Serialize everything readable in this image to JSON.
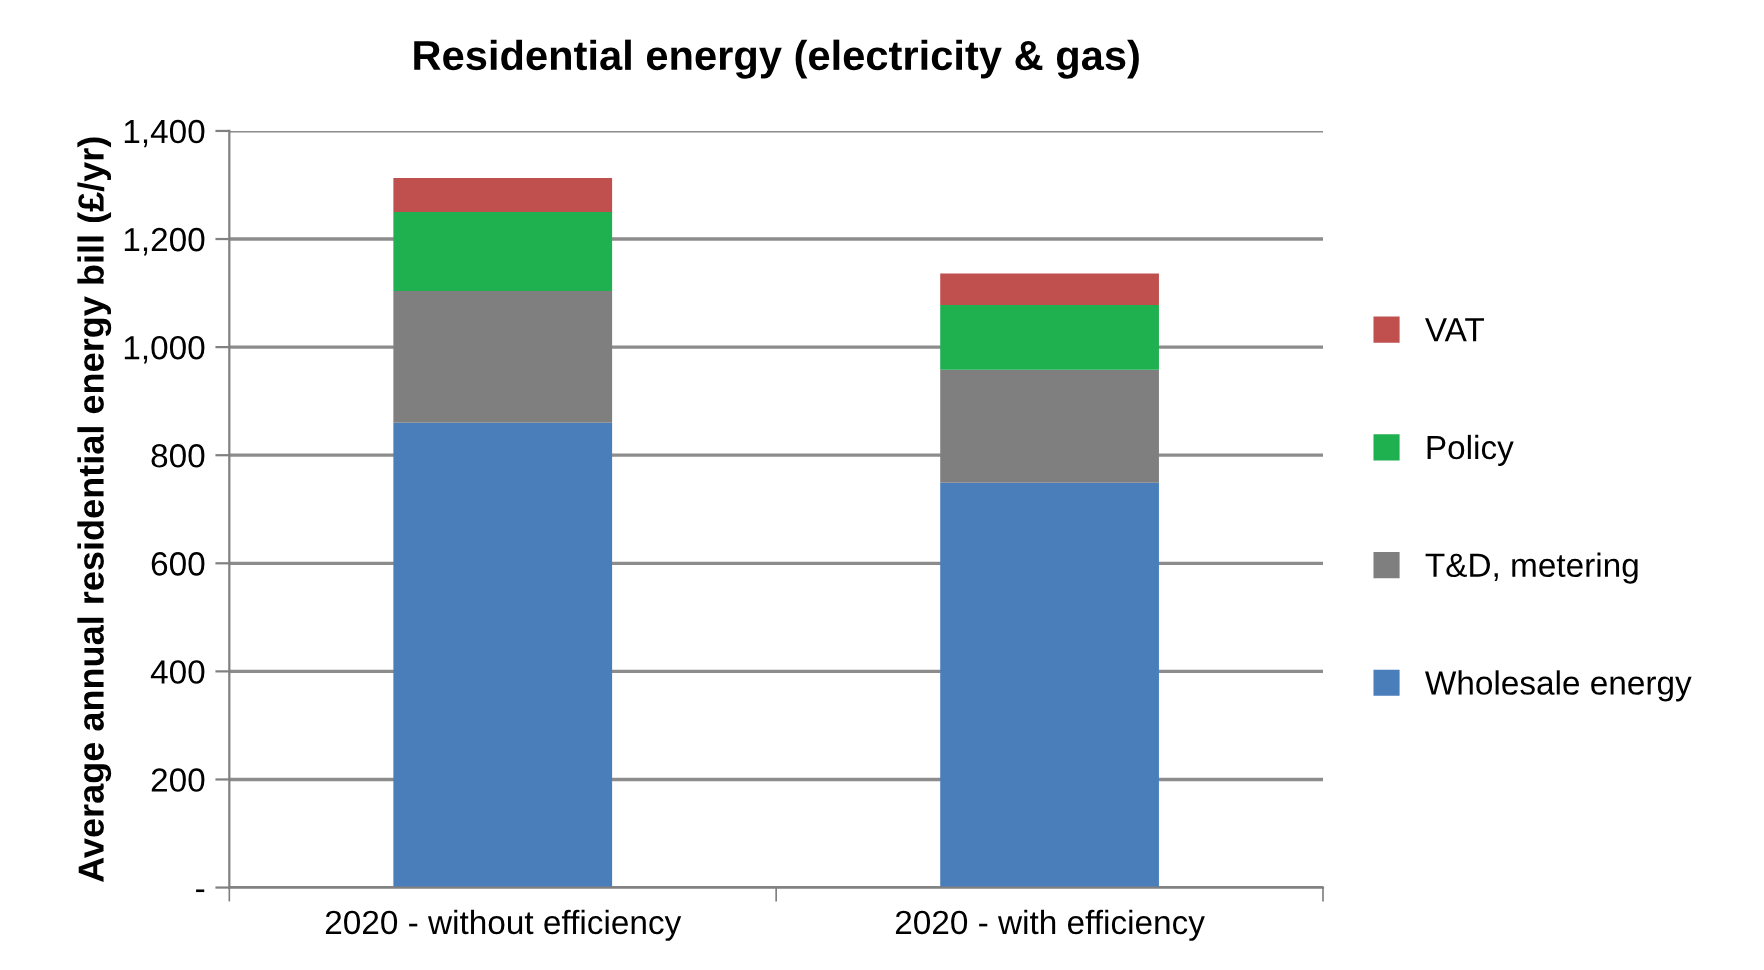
{
  "chart_data": {
    "type": "bar",
    "stacked": true,
    "title": "Residential energy (electricity & gas)",
    "ylabel": "Average annual residential energy bill (£/yr)",
    "categories": [
      "2020 - without efficiency",
      "2020 - with efficiency"
    ],
    "series": [
      {
        "name": "Wholesale energy",
        "color": "#4a7ebb",
        "values": [
          860,
          749
        ]
      },
      {
        "name": "T&D, metering",
        "color": "#7f7f7f",
        "values": [
          244,
          209
        ]
      },
      {
        "name": "Policy",
        "color": "#1fb050",
        "values": [
          146,
          120
        ]
      },
      {
        "name": "VAT",
        "color": "#c0504d",
        "values": [
          63,
          58
        ]
      }
    ],
    "ylim": [
      0,
      1400
    ],
    "yticks": [
      {
        "value": 0,
        "label": "-"
      },
      {
        "value": 200,
        "label": "200"
      },
      {
        "value": 400,
        "label": "400"
      },
      {
        "value": 600,
        "label": "600"
      },
      {
        "value": 800,
        "label": "800"
      },
      {
        "value": 1000,
        "label": "1,000"
      },
      {
        "value": 1200,
        "label": "1,200"
      },
      {
        "value": 1400,
        "label": "1,400"
      }
    ],
    "grid": "y",
    "legend": "right"
  }
}
